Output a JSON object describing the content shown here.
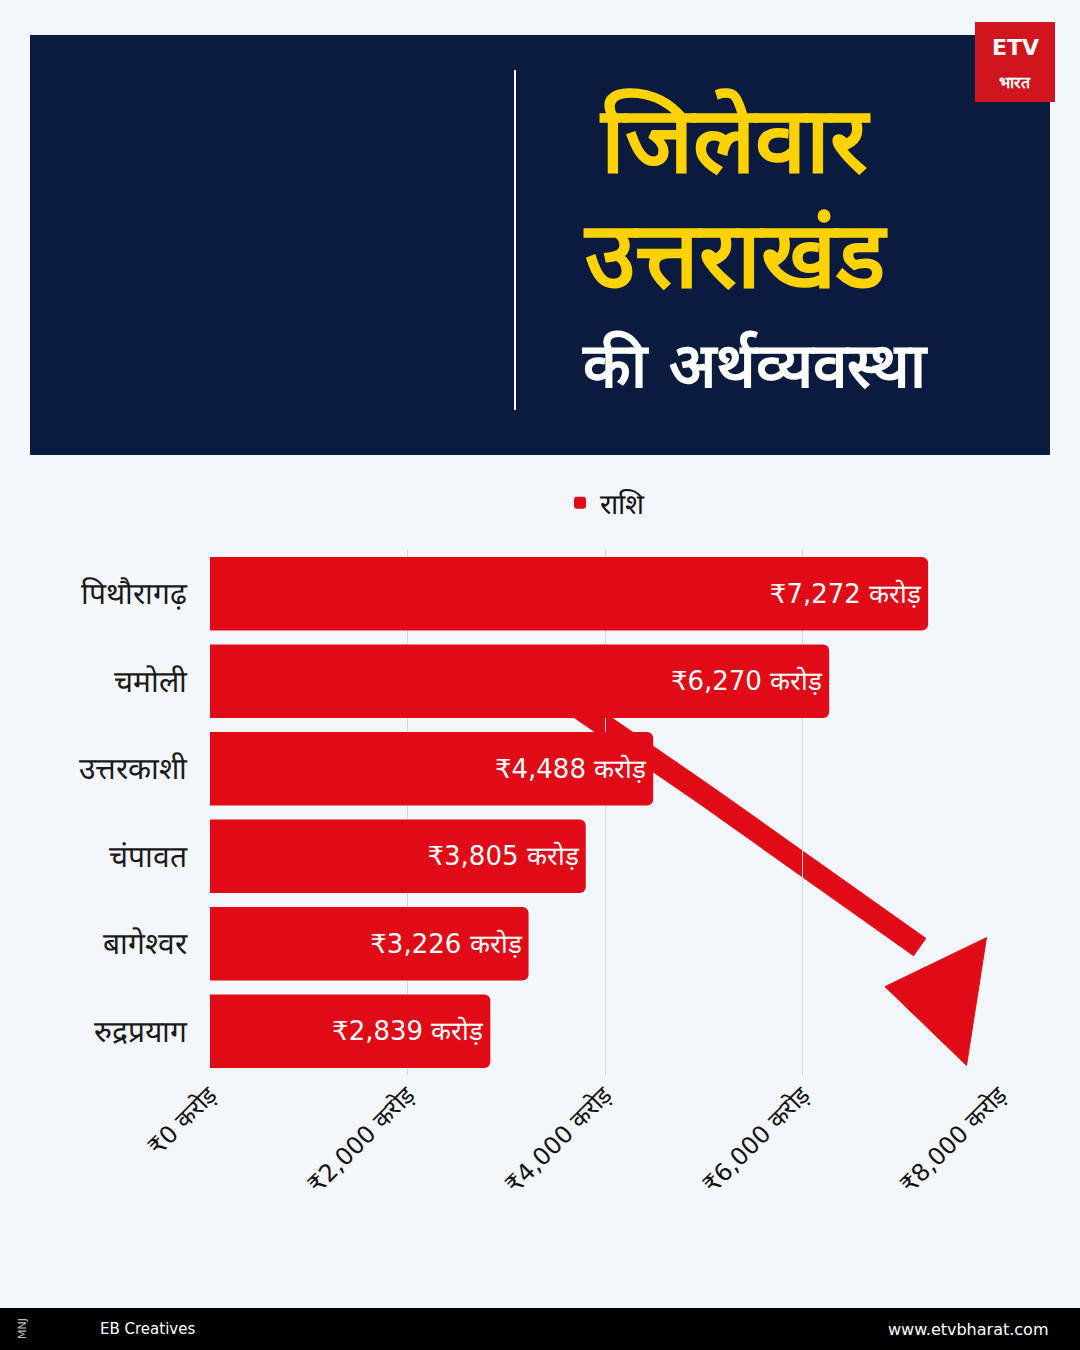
{
  "chart_data": {
    "type": "bar",
    "orientation": "horizontal",
    "title": "जिलेवार उत्तराखंड की अर्थव्यवस्था",
    "categories": [
      "पिथौरागढ़",
      "चमोली",
      "उत्तरकाशी",
      "चंपावत",
      "बागेश्वर",
      "रुद्रप्रयाग"
    ],
    "series": [
      {
        "name": "राशि",
        "color": "#e00b17",
        "values": [
          7272,
          6270,
          4488,
          3805,
          3226,
          2839
        ],
        "value_labels": [
          "₹7,272 करोड़",
          "₹6,270 करोड़",
          "₹4,488 करोड़",
          "₹3,805 करोड़",
          "₹3,226 करोड़",
          "₹2,839 करोड़"
        ]
      }
    ],
    "xlim": [
      0,
      8000
    ],
    "xticks": [
      {
        "value": 0,
        "label": "₹0 करोड़"
      },
      {
        "value": 2000,
        "label": "₹2,000 करोड़"
      },
      {
        "value": 4000,
        "label": "₹4,000 करोड़"
      },
      {
        "value": 6000,
        "label": "₹6,000 करोड़"
      },
      {
        "value": 8000,
        "label": "₹8,000 करोड़"
      }
    ],
    "grid": true,
    "legend": "top",
    "data_labels": true,
    "annotations": [
      "ETV",
      "भारत",
      "MNJ",
      "EB Creatives",
      "www.etvbharat.com"
    ]
  }
}
